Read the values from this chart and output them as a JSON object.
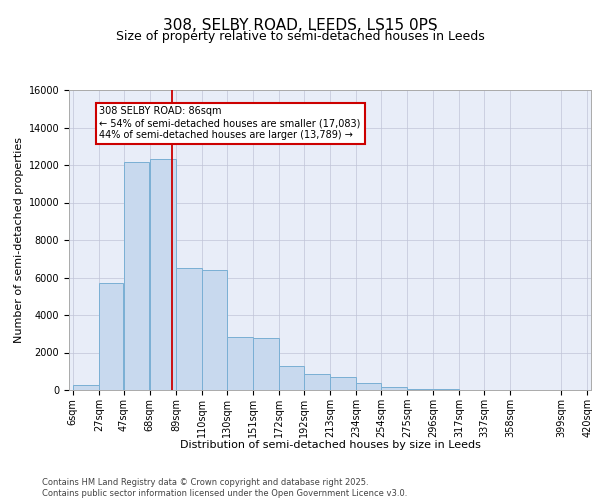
{
  "title1": "308, SELBY ROAD, LEEDS, LS15 0PS",
  "title2": "Size of property relative to semi-detached houses in Leeds",
  "xlabel": "Distribution of semi-detached houses by size in Leeds",
  "ylabel": "Number of semi-detached properties",
  "bar_color": "#c8d9ee",
  "bar_edge_color": "#7aafd4",
  "background_color": "#e8edf8",
  "vline_color": "#cc0000",
  "property_size": 86,
  "annotation_line1": "308 SELBY ROAD: 86sqm",
  "annotation_line2": "← 54% of semi-detached houses are smaller (17,083)",
  "annotation_line3": "44% of semi-detached houses are larger (13,789) →",
  "footer_text": "Contains HM Land Registry data © Crown copyright and database right 2025.\nContains public sector information licensed under the Open Government Licence v3.0.",
  "bin_edges": [
    6,
    27,
    47,
    68,
    89,
    110,
    130,
    151,
    172,
    192,
    213,
    234,
    254,
    275,
    296,
    317,
    337,
    358,
    399,
    420
  ],
  "counts": [
    280,
    5700,
    12150,
    12300,
    6500,
    6400,
    2850,
    2750,
    1300,
    880,
    680,
    360,
    160,
    72,
    36,
    13,
    6,
    3,
    1
  ],
  "ylim_max": 16000,
  "yticks": [
    0,
    2000,
    4000,
    6000,
    8000,
    10000,
    12000,
    14000,
    16000
  ],
  "title_fontsize": 11,
  "subtitle_fontsize": 9,
  "axis_label_fontsize": 8,
  "tick_fontsize": 7
}
